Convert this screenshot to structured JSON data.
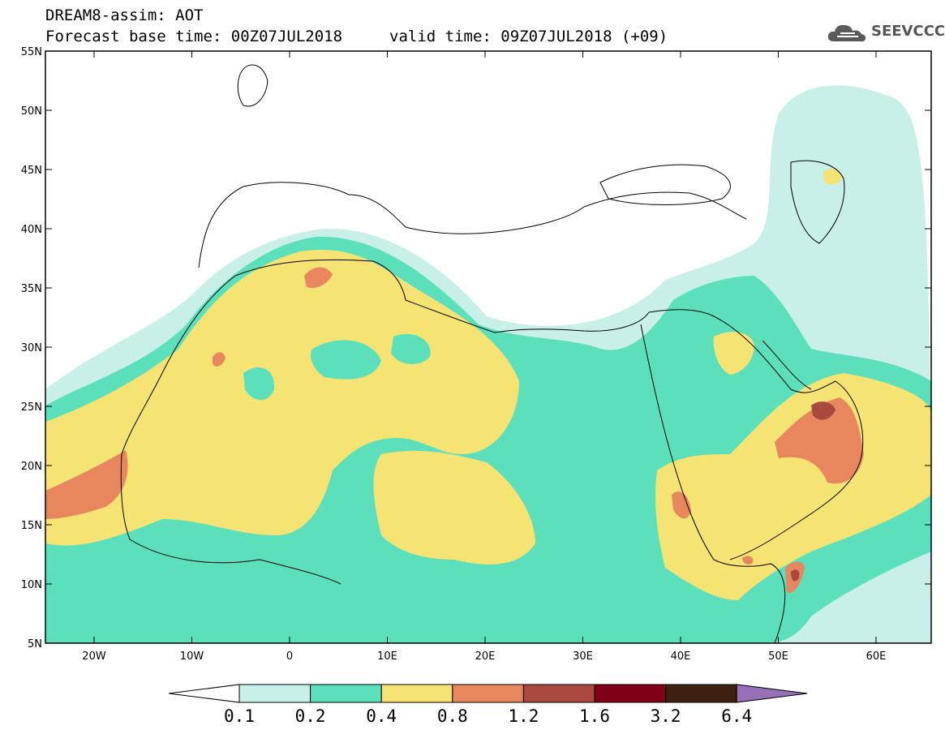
{
  "header": {
    "title": "DREAM8-assim: AOT",
    "forecast_base": "Forecast base time: 00Z07JUL2018",
    "valid_time": "valid time: 09Z07JUL2018 (+09)",
    "logo_text": "SEEVCCC"
  },
  "axes": {
    "lon_labels": [
      "20W",
      "10W",
      "0",
      "10E",
      "20E",
      "30E",
      "40E",
      "50E",
      "60E"
    ],
    "lat_labels": [
      "55N",
      "50N",
      "45N",
      "40N",
      "35N",
      "30N",
      "25N",
      "20N",
      "15N",
      "10N",
      "5N"
    ]
  },
  "legend": {
    "bins": [
      {
        "color": "#c8f0e8"
      },
      {
        "color": "#5ce0bc"
      },
      {
        "color": "#f5e373"
      },
      {
        "color": "#e8875e"
      },
      {
        "color": "#a8483e"
      },
      {
        "color": "#800018"
      },
      {
        "color": "#3e2010"
      }
    ],
    "under_color": "#ffffff",
    "over_color": "#9870b8",
    "labels": [
      "0.1",
      "0.2",
      "0.4",
      "0.8",
      "1.2",
      "1.6",
      "3.2",
      "6.4"
    ]
  },
  "colors": {
    "c01": "#c8f0e8",
    "c02": "#5ce0bc",
    "c04": "#f5e373",
    "c08": "#e8875e",
    "c12": "#a8483e",
    "coast": "#000000"
  }
}
